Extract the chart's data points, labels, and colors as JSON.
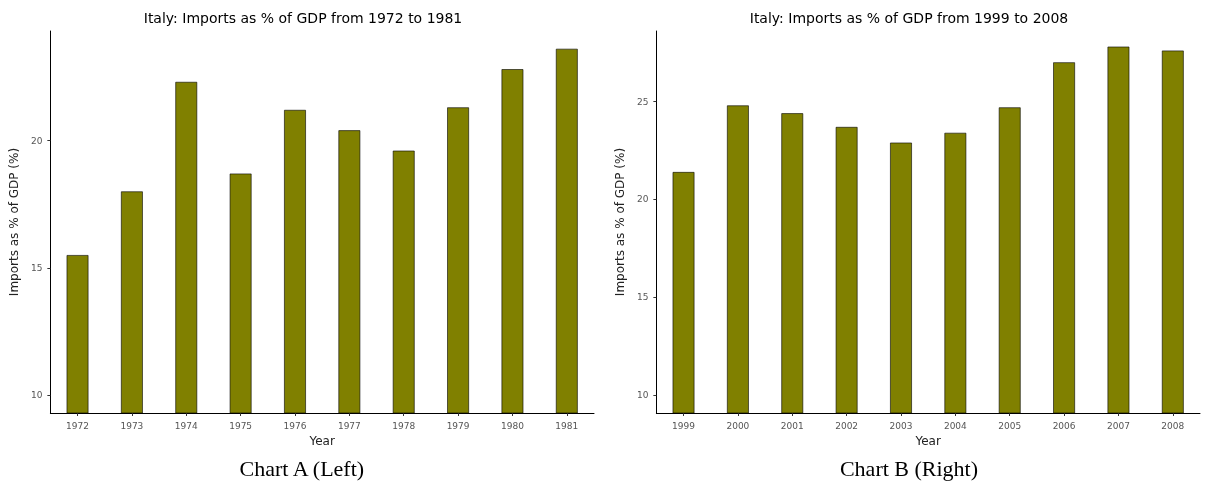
{
  "chart_data": [
    {
      "type": "bar",
      "title": "Italy: Imports as % of GDP from 1972 to 1981",
      "xlabel": "Year",
      "ylabel": "Imports as % of GDP (%)",
      "categories": [
        "1972",
        "1973",
        "1974",
        "1975",
        "1976",
        "1977",
        "1978",
        "1979",
        "1980",
        "1981"
      ],
      "values": [
        15.5,
        18.0,
        22.3,
        18.7,
        21.2,
        20.4,
        19.6,
        21.3,
        22.8,
        23.6
      ],
      "color": "#808000",
      "ylim": [
        9.3,
        24.3
      ],
      "yticks": [
        10,
        15,
        20
      ],
      "grid": false,
      "annotations": [
        "Chart A (Left)"
      ]
    },
    {
      "type": "bar",
      "title": "Italy: Imports as % of GDP from 1999 to 2008",
      "xlabel": "Year",
      "ylabel": "Imports as % of GDP (%)",
      "categories": [
        "1999",
        "2000",
        "2001",
        "2002",
        "2003",
        "2004",
        "2005",
        "2006",
        "2007",
        "2008"
      ],
      "values": [
        21.4,
        24.8,
        24.4,
        23.7,
        22.9,
        23.4,
        24.7,
        27.0,
        27.8,
        27.6
      ],
      "color": "#808000",
      "ylim": [
        9.1,
        28.6
      ],
      "yticks": [
        10,
        15,
        20,
        25
      ],
      "grid": false,
      "annotations": [
        "Chart B (Right)"
      ]
    }
  ]
}
